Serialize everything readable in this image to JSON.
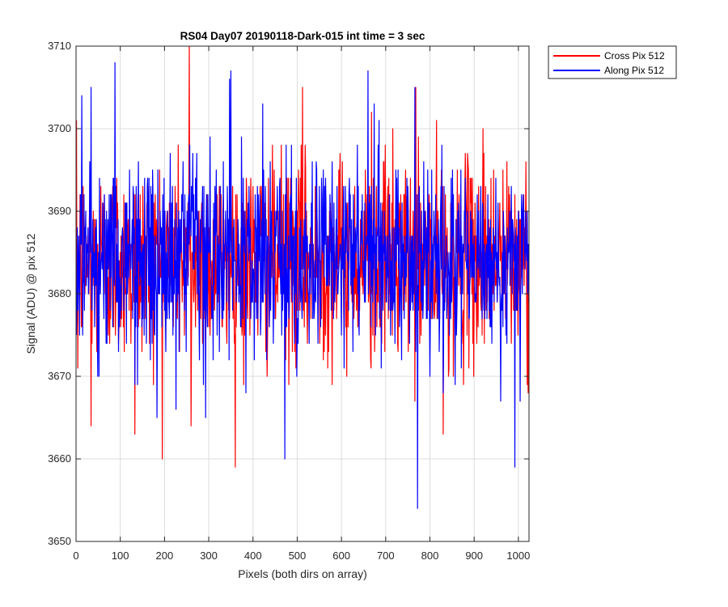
{
  "chart_data": {
    "type": "line",
    "title": "RS04 Day07 20190118-Dark-015 int time = 3 sec",
    "xlabel": "Pixels (both dirs on array)",
    "ylabel": "Signal (ADU) @ pix 512",
    "xlim": [
      0,
      1024
    ],
    "ylim": [
      3650,
      3710
    ],
    "xticks": [
      0,
      100,
      200,
      300,
      400,
      500,
      600,
      700,
      800,
      900,
      1000
    ],
    "xtick_labels": [
      "0",
      "100",
      "200",
      "300",
      "400",
      "500",
      "600",
      "700",
      "800",
      "900",
      "1000"
    ],
    "yticks": [
      3650,
      3660,
      3670,
      3680,
      3690,
      3700,
      3710
    ],
    "ytick_labels": [
      "3650",
      "3660",
      "3670",
      "3680",
      "3690",
      "3700",
      "3710"
    ],
    "grid": true,
    "legend_position": "outside-top-right",
    "x": {
      "start": 1,
      "end": 1024,
      "step": 1
    },
    "series": [
      {
        "name": "Cross Pix 512",
        "color": "#ff0000",
        "mean": 3684,
        "std": 6,
        "approximate": true,
        "notable_points": [
          [
            4,
            3671
          ],
          [
            34,
            3664
          ],
          [
            133,
            3663
          ],
          [
            256,
            3710
          ],
          [
            260,
            3664
          ],
          [
            512,
            3705
          ],
          [
            668,
            3702
          ],
          [
            716,
            3700
          ],
          [
            768,
            3705
          ],
          [
            830,
            3663
          ],
          [
            920,
            3700
          ],
          [
            938,
            3694
          ],
          [
            1020,
            3669
          ]
        ]
      },
      {
        "name": "Along Pix 512",
        "color": "#0000ff",
        "mean": 3684,
        "std": 6,
        "approximate": true,
        "notable_points": [
          [
            13,
            3704
          ],
          [
            88,
            3708
          ],
          [
            183,
            3665
          ],
          [
            350,
            3707
          ],
          [
            472,
            3660
          ],
          [
            660,
            3707
          ],
          [
            766,
            3705
          ],
          [
            772,
            3654
          ],
          [
            992,
            3659
          ],
          [
            1004,
            3667
          ]
        ]
      }
    ]
  }
}
